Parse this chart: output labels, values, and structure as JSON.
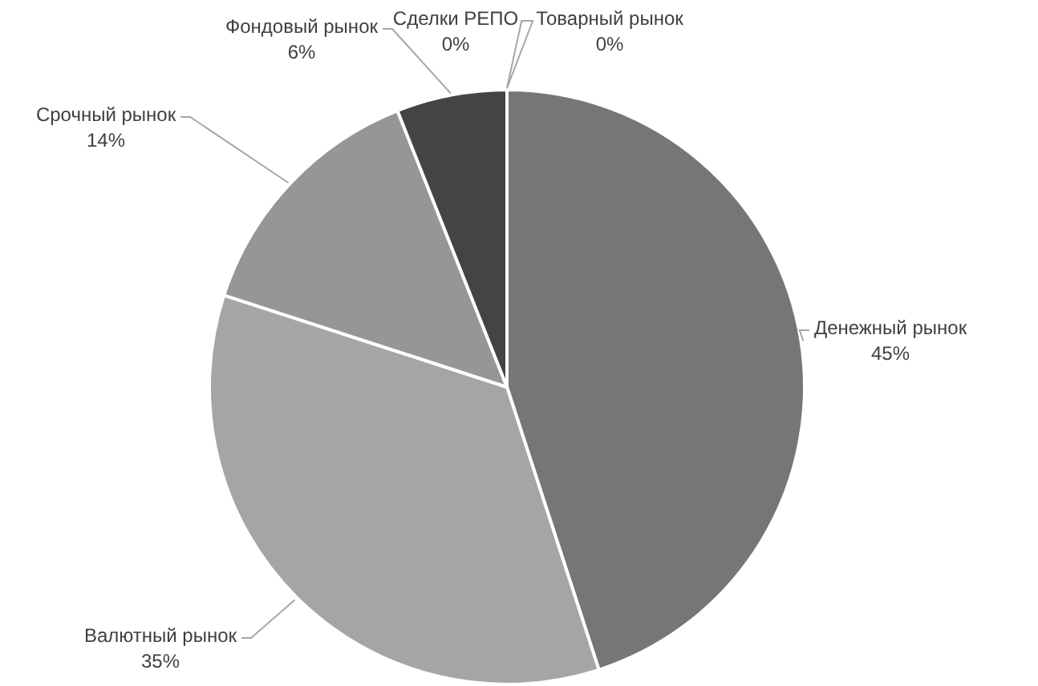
{
  "chart_data": {
    "type": "pie",
    "categories": [
      "Денежный рынок",
      "Валютный рынок",
      "Срочный рынок",
      "Фондовый рынок",
      "Сделки РЕПО",
      "Товарный рынок"
    ],
    "values": [
      45,
      35,
      14,
      6,
      0,
      0
    ],
    "colors": [
      "#767676",
      "#a5a5a5",
      "#969696",
      "#444444",
      "#bfbfbf",
      "#5f5f5f"
    ],
    "value_labels": [
      "45%",
      "35%",
      "14%",
      "6%",
      "0%",
      "0%"
    ],
    "legend": false
  }
}
